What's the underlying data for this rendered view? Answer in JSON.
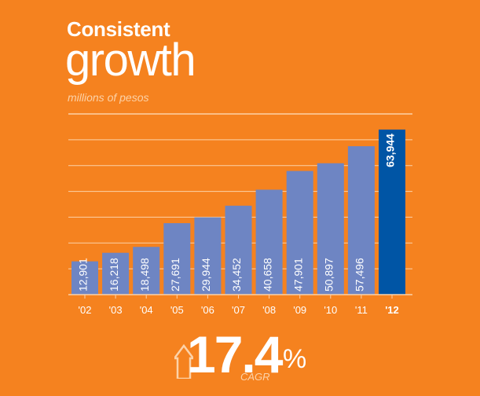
{
  "title": {
    "bold": "Consistent",
    "light": "growth",
    "subtitle": "millions of pesos"
  },
  "chart_data": {
    "type": "bar",
    "title": "Consistent growth",
    "ylabel": "millions of pesos",
    "categories": [
      "'02",
      "'03",
      "'04",
      "'05",
      "'06",
      "'07",
      "'08",
      "'09",
      "'10",
      "'11",
      "'12"
    ],
    "values": [
      12901,
      16218,
      18498,
      27691,
      29944,
      34452,
      40658,
      47901,
      50897,
      57496,
      63944
    ],
    "labels": [
      "12,901",
      "16,218",
      "18,498",
      "27,691",
      "29,944",
      "34,452",
      "40,658",
      "47,901",
      "50,897",
      "57,496",
      "63,944"
    ],
    "highlight_index": 10,
    "ylim": [
      0,
      70000
    ],
    "grid": true
  },
  "cagr": {
    "value": "17.4",
    "percent": "%",
    "label": "CAGR"
  },
  "colors": {
    "background": "#F5821F",
    "bar": "#6E85C3",
    "highlight": "#0055A5",
    "grid": "#FCD2A8",
    "text": "#FFFFFF",
    "muted": "#FCD2A8"
  }
}
